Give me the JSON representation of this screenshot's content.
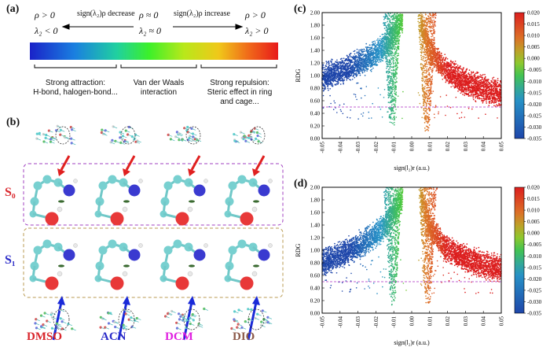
{
  "panels": {
    "a": "(a)",
    "b": "(b)",
    "c": "(c)",
    "d": "(d)"
  },
  "panel_a": {
    "left": {
      "rho": "ρ > 0",
      "lambda": "λ₂ < 0"
    },
    "middle": {
      "rho": "ρ ≈ 0",
      "lambda": "λ₂ ≈ 0"
    },
    "right": {
      "rho": "ρ > 0",
      "lambda": "λ₂ > 0"
    },
    "decrease": "sign(λ₂)ρ decrease",
    "increase": "sign(λ₂)ρ increase",
    "cap_left": [
      "Strong attraction:",
      "H-bond, halogen-bond..."
    ],
    "cap_mid": [
      "Van der Waals",
      "interaction"
    ],
    "cap_right": [
      "Strong repulsion:",
      "Steric effect in ring",
      "and cage..."
    ]
  },
  "panel_b": {
    "s0": "S₀",
    "s1": "S₁",
    "solvents": [
      {
        "label": "DMSO",
        "color": "#d9262c"
      },
      {
        "label": "ACN",
        "color": "#2a2ac8"
      },
      {
        "label": "DCM",
        "color": "#e020e0"
      },
      {
        "label": "DIO",
        "color": "#8c5a4a"
      }
    ]
  },
  "chart_data": [
    {
      "type": "scatter",
      "panel": "(c)",
      "xlabel": "sign(l₂)r (a.u.)",
      "ylabel": "RDG",
      "xlim": [
        -0.05,
        0.05
      ],
      "ylim": [
        0.0,
        2.0
      ],
      "x_ticks": [
        "-0.05",
        "-0.04",
        "-0.03",
        "-0.02",
        "-0.01",
        "0.00",
        "0.01",
        "0.02",
        "0.03",
        "0.04",
        "0.05"
      ],
      "y_ticks": [
        "0.00",
        "0.20",
        "0.40",
        "0.60",
        "0.80",
        "1.00",
        "1.20",
        "1.40",
        "1.60",
        "1.80",
        "2.00"
      ],
      "reference_line_y": 0.5,
      "colorbar": {
        "min": -0.035,
        "max": 0.02,
        "ticks": [
          "0.020",
          "0.015",
          "0.010",
          "0.005",
          "0.000",
          "-0.005",
          "-0.010",
          "-0.015",
          "-0.020",
          "-0.025",
          "-0.030",
          "-0.035"
        ]
      },
      "bands": [
        {
          "x": [
            -0.05,
            -0.04,
            -0.03,
            -0.02,
            -0.015,
            -0.01,
            -0.005
          ],
          "y": [
            1.1,
            1.2,
            1.32,
            1.48,
            1.6,
            1.8,
            2.0
          ]
        },
        {
          "x": [
            0.005,
            0.01,
            0.015,
            0.02,
            0.03,
            0.04,
            0.05
          ],
          "y": [
            2.0,
            1.55,
            1.35,
            1.2,
            1.03,
            0.92,
            0.85
          ]
        }
      ],
      "spikes": [
        {
          "x": -0.011,
          "y_min": 0.15
        },
        {
          "x": 0.0085,
          "y_min": 0.1
        }
      ]
    },
    {
      "type": "scatter",
      "panel": "(d)",
      "xlabel": "sign(l₂)r (a.u.)",
      "ylabel": "RDG",
      "xlim": [
        -0.05,
        0.05
      ],
      "ylim": [
        0.0,
        2.0
      ],
      "x_ticks": [
        "-0.05",
        "-0.04",
        "-0.03",
        "-0.02",
        "-0.01",
        "0.00",
        "0.01",
        "0.02",
        "0.03",
        "0.04",
        "0.05"
      ],
      "y_ticks": [
        "0.00",
        "0.20",
        "0.40",
        "0.60",
        "0.80",
        "1.00",
        "1.20",
        "1.40",
        "1.60",
        "1.80",
        "2.00"
      ],
      "reference_line_y": 0.5,
      "colorbar": {
        "min": -0.035,
        "max": 0.02,
        "ticks": [
          "0.020",
          "0.015",
          "0.010",
          "0.005",
          "0.000",
          "-0.005",
          "-0.010",
          "-0.015",
          "-0.020",
          "-0.025",
          "-0.030",
          "-0.035"
        ]
      },
      "bands": [
        {
          "x": [
            -0.05,
            -0.04,
            -0.03,
            -0.02,
            -0.015,
            -0.01,
            -0.005
          ],
          "y": [
            0.95,
            1.05,
            1.2,
            1.38,
            1.52,
            1.75,
            2.0
          ]
        },
        {
          "x": [
            0.005,
            0.01,
            0.015,
            0.02,
            0.03,
            0.04,
            0.05
          ],
          "y": [
            2.0,
            1.5,
            1.3,
            1.15,
            1.0,
            0.9,
            0.84
          ]
        }
      ],
      "spikes": [
        {
          "x": -0.0105,
          "y_min": 0.08
        },
        {
          "x": 0.009,
          "y_min": 0.12
        }
      ]
    }
  ]
}
